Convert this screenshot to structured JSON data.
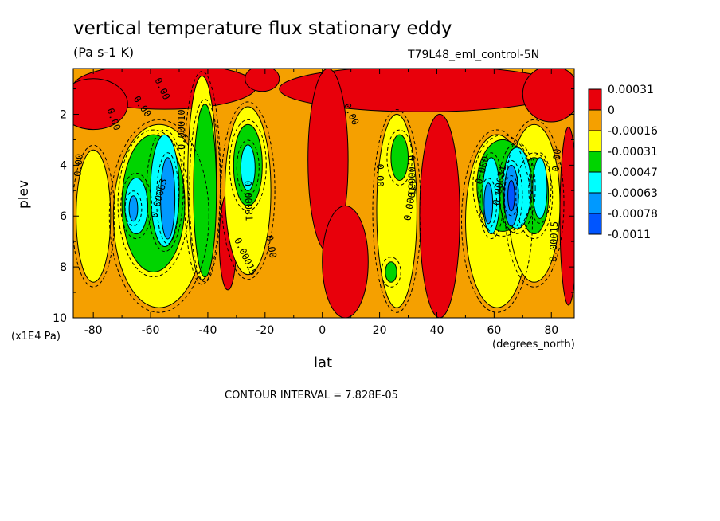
{
  "chart_data": {
    "type": "heatmap",
    "title": "vertical temperature flux stationary eddy",
    "units": "(Pa s-1 K)",
    "dataset": "T79L48_eml_control-5N",
    "xlabel": "lat",
    "x_unit": "(degrees_north)",
    "ylabel": "plev",
    "y_unit": "(x1E4 Pa)",
    "contour_interval": "CONTOUR INTERVAL = 7.828E-05",
    "xlim": [
      -87,
      88
    ],
    "ylim": [
      10,
      0.2
    ],
    "y_inverted": true,
    "x_ticks": [
      {
        "value": -80,
        "label": "-80"
      },
      {
        "value": -60,
        "label": "-60"
      },
      {
        "value": -40,
        "label": "-40"
      },
      {
        "value": -20,
        "label": "-20"
      },
      {
        "value": 0,
        "label": "0"
      },
      {
        "value": 20,
        "label": "20"
      },
      {
        "value": 40,
        "label": "40"
      },
      {
        "value": 60,
        "label": "60"
      },
      {
        "value": 80,
        "label": "80"
      }
    ],
    "y_ticks": [
      {
        "value": 2,
        "label": "2"
      },
      {
        "value": 4,
        "label": "4"
      },
      {
        "value": 6,
        "label": "6"
      },
      {
        "value": 8,
        "label": "8"
      },
      {
        "value": 10,
        "label": "10"
      }
    ],
    "colorbar": [
      {
        "label": "0.00031",
        "color": "#e8000b"
      },
      {
        "label": "0",
        "color": "#f5a000"
      },
      {
        "label": "-0.00016",
        "color": "#ffff00"
      },
      {
        "label": "-0.00031",
        "color": "#00d400"
      },
      {
        "label": "-0.00047",
        "color": "#00ffff"
      },
      {
        "label": "-0.00063",
        "color": "#0099ff"
      },
      {
        "label": "-0.00078",
        "color": "#0055ff"
      },
      {
        "label": "-0.0011",
        "color": ""
      }
    ],
    "contour_labels": [
      {
        "text": "0.000",
        "lat": 56,
        "plev": 4.2,
        "angle": -75
      },
      {
        "text": "0.00",
        "lat": -56,
        "plev": 1.0,
        "angle": 65
      },
      {
        "text": "0.00",
        "lat": -63,
        "plev": 1.7,
        "angle": 55
      },
      {
        "text": "0.00",
        "lat": -73,
        "plev": 2.2,
        "angle": 70
      },
      {
        "text": "0.00010",
        "lat": -49,
        "plev": 2.6,
        "angle": -90
      },
      {
        "text": "0.00063",
        "lat": -57,
        "plev": 5.3,
        "angle": -75
      },
      {
        "text": "0.00031",
        "lat": -26,
        "plev": 5.4,
        "angle": 88
      },
      {
        "text": "0.00015",
        "lat": -27,
        "plev": 7.6,
        "angle": 65
      },
      {
        "text": "0.00",
        "lat": -18,
        "plev": 7.2,
        "angle": 80
      },
      {
        "text": "0.00",
        "lat": 10,
        "plev": 2.0,
        "angle": 65
      },
      {
        "text": "0.00",
        "lat": 20,
        "plev": 4.4,
        "angle": 90
      },
      {
        "text": "0.00015",
        "lat": 31,
        "plev": 5.4,
        "angle": -80
      },
      {
        "text": "0.00031",
        "lat": 31,
        "plev": 4.4,
        "angle": 90
      },
      {
        "text": "0.00031",
        "lat": 62,
        "plev": 4.8,
        "angle": -80
      },
      {
        "text": "0.00015",
        "lat": 81,
        "plev": 7.0,
        "angle": -88
      },
      {
        "text": "0.00",
        "lat": 82,
        "plev": 3.8,
        "angle": -85
      },
      {
        "text": "0.00",
        "lat": -85,
        "plev": 4.0,
        "angle": -85
      }
    ]
  },
  "colors": {
    "bg": "#ffffff",
    "red": "#e8000b",
    "orange": "#f5a000",
    "yellow": "#ffff00",
    "green": "#00d400",
    "cyan": "#00ffff",
    "blue": "#0099ff",
    "darkblue": "#0055ff"
  }
}
